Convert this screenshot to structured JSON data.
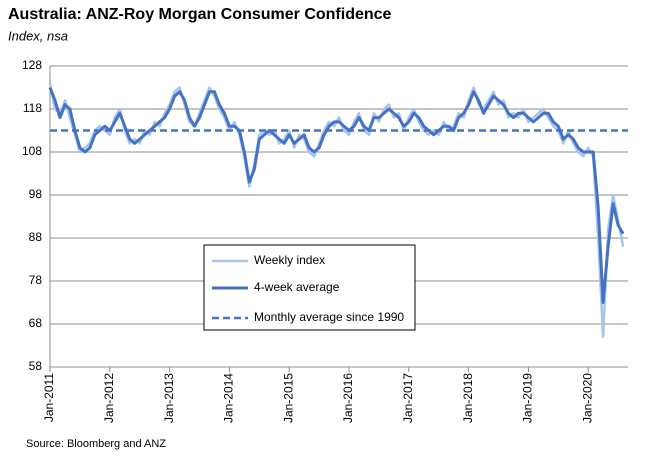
{
  "chart_data": {
    "type": "line",
    "title": "Australia: ANZ-Roy Morgan Consumer Confidence",
    "subtitle": "Index, nsa",
    "source": "Source: Bloomberg and ANZ",
    "categories": [
      "Jan-2011",
      null,
      null,
      null,
      null,
      null,
      null,
      null,
      null,
      null,
      null,
      null,
      "Jan-2012",
      null,
      null,
      null,
      null,
      null,
      null,
      null,
      null,
      null,
      null,
      null,
      "Jan-2013",
      null,
      null,
      null,
      null,
      null,
      null,
      null,
      null,
      null,
      null,
      null,
      "Jan-2014",
      null,
      null,
      null,
      null,
      null,
      null,
      null,
      null,
      null,
      null,
      null,
      "Jan-2015",
      null,
      null,
      null,
      null,
      null,
      null,
      null,
      null,
      null,
      null,
      null,
      "Jan-2016",
      null,
      null,
      null,
      null,
      null,
      null,
      null,
      null,
      null,
      null,
      null,
      "Jan-2017",
      null,
      null,
      null,
      null,
      null,
      null,
      null,
      null,
      null,
      null,
      null,
      "Jan-2018",
      null,
      null,
      null,
      null,
      null,
      null,
      null,
      null,
      null,
      null,
      null,
      "Jan-2019",
      null,
      null,
      null,
      null,
      null,
      null,
      null,
      null,
      null,
      null,
      null,
      "Jan-2020",
      null,
      null,
      null,
      null,
      null,
      null,
      null
    ],
    "series": [
      {
        "name": "Weekly index",
        "color": "#a9c4e8",
        "width": 2.5,
        "values": [
          124,
          118,
          117,
          120,
          116,
          112,
          108,
          109,
          110,
          113,
          114,
          113,
          112,
          116,
          118,
          113,
          110,
          111,
          110,
          113,
          112,
          115,
          114,
          117,
          119,
          122,
          123,
          119,
          115,
          114,
          117,
          120,
          123,
          121,
          118,
          116,
          113,
          115,
          112,
          107,
          100,
          105,
          112,
          113,
          112,
          113,
          110,
          111,
          113,
          109,
          112,
          111,
          108,
          107,
          110,
          113,
          115,
          114,
          116,
          113,
          112,
          115,
          117,
          113,
          112,
          117,
          115,
          118,
          119,
          116,
          117,
          113,
          116,
          118,
          115,
          113,
          112,
          113,
          112,
          115,
          113,
          114,
          117,
          116,
          120,
          123,
          119,
          118,
          120,
          122,
          119,
          120,
          116,
          117,
          116,
          118,
          115,
          116,
          117,
          118,
          116,
          114,
          113,
          110,
          113,
          110,
          108,
          107,
          109,
          107,
          88,
          65,
          90,
          98,
          92,
          86
        ]
      },
      {
        "name": "4-week average",
        "color": "#4472c4",
        "width": 3,
        "values": [
          123,
          120,
          116,
          119,
          118,
          113,
          109,
          108,
          109,
          112,
          113,
          114,
          113,
          115,
          117,
          114,
          111,
          110,
          111,
          112,
          113,
          114,
          115,
          116,
          118,
          121,
          122,
          120,
          116,
          114,
          116,
          119,
          122,
          122,
          119,
          117,
          114,
          114,
          113,
          108,
          101,
          104,
          111,
          112,
          113,
          112,
          111,
          110,
          112,
          110,
          111,
          112,
          109,
          108,
          109,
          112,
          114,
          115,
          115,
          114,
          113,
          114,
          116,
          114,
          113,
          116,
          116,
          117,
          118,
          117,
          116,
          114,
          115,
          117,
          116,
          114,
          113,
          112,
          113,
          114,
          114,
          113,
          116,
          117,
          119,
          122,
          120,
          117,
          119,
          121,
          120,
          119,
          117,
          116,
          117,
          117,
          116,
          115,
          116,
          117,
          117,
          115,
          114,
          111,
          112,
          111,
          109,
          108,
          108,
          108,
          95,
          73,
          86,
          96,
          91,
          89
        ]
      },
      {
        "name": "Monthly average since 1990",
        "color": "#4472c4",
        "width": 2.5,
        "dashed": true,
        "value": 113
      }
    ],
    "ylim": [
      58,
      128
    ],
    "yticks": [
      58,
      68,
      78,
      88,
      98,
      108,
      118,
      128
    ],
    "grid": true
  }
}
